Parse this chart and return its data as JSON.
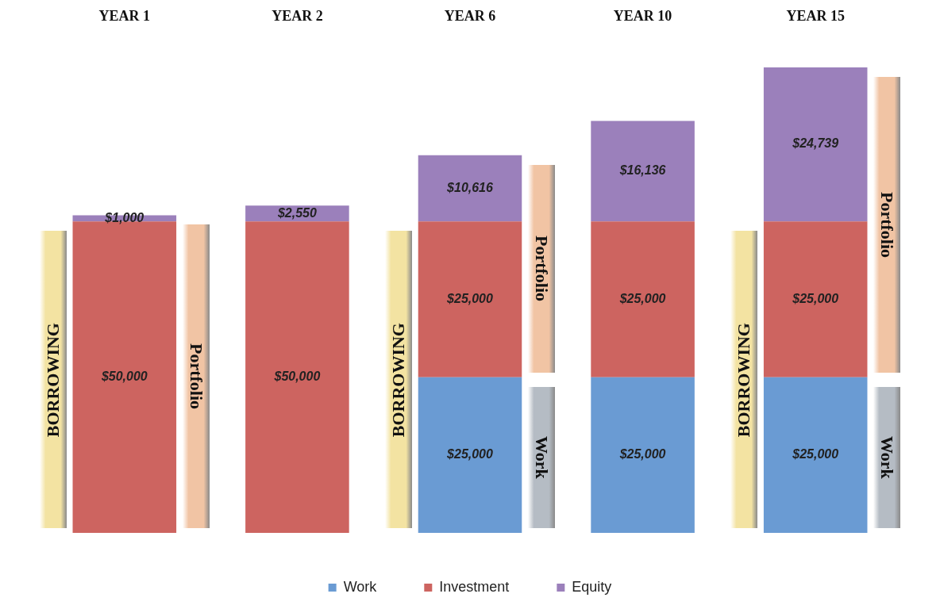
{
  "chart_data": {
    "type": "bar",
    "stacked": true,
    "categories": [
      "YEAR 1",
      "YEAR 2",
      "YEAR 6",
      "YEAR 10",
      "YEAR 15"
    ],
    "series": [
      {
        "name": "Work",
        "color": "#6a9bd3",
        "values": [
          null,
          null,
          25000,
          25000,
          25000
        ],
        "value_labels": [
          null,
          null,
          "$25,000",
          "$25,000",
          "$25,000"
        ]
      },
      {
        "name": "Investment",
        "color": "#cd6460",
        "values": [
          50000,
          50000,
          25000,
          25000,
          25000
        ],
        "value_labels": [
          "$50,000",
          "$50,000",
          "$25,000",
          "$25,000",
          "$25,000"
        ]
      },
      {
        "name": "Equity",
        "color": "#9b80bb",
        "values": [
          1000,
          2550,
          10616,
          16136,
          24739
        ],
        "value_labels": [
          "$1,000",
          "$2,550",
          "$10,616",
          "$16,136",
          "$24,739"
        ]
      }
    ],
    "legend": "bottom",
    "grid": false,
    "annotations": [
      "BORROWING",
      "Portfolio",
      "BORROWING",
      "Portfolio",
      "Work",
      "BORROWING",
      "Portfolio",
      "Work"
    ]
  }
}
